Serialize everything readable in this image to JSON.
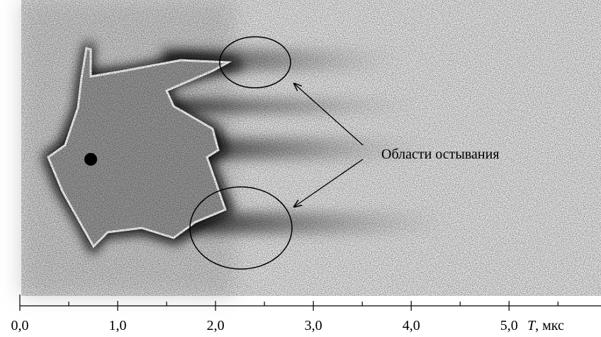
{
  "chart_data": {
    "type": "image-axis",
    "annotation": "Области остывания",
    "x_label_symbol": "T",
    "x_label_unit": ", мкс",
    "xlim": [
      0,
      5.94
    ],
    "xticks": [
      {
        "value": 0,
        "label": "0,0"
      },
      {
        "value": 1,
        "label": "1,0"
      },
      {
        "value": 2,
        "label": "2,0"
      },
      {
        "value": 3,
        "label": "3,0"
      },
      {
        "value": 4,
        "label": "4,0"
      },
      {
        "value": 5,
        "label": "5,0"
      }
    ],
    "minor_xticks": [
      0.5,
      1.5,
      2.5,
      3.5,
      4.5,
      5.5
    ]
  }
}
